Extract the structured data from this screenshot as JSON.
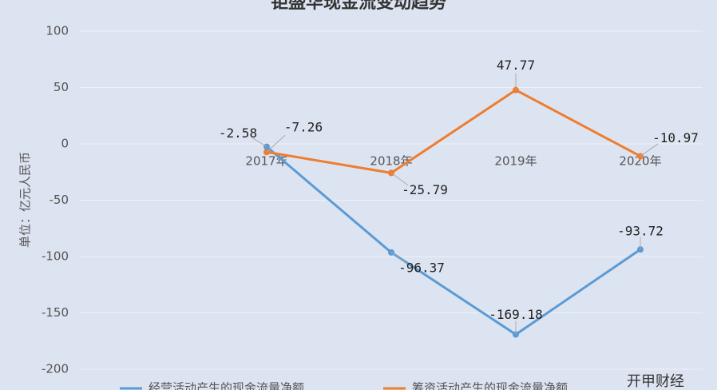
{
  "chart_data": {
    "type": "line",
    "title": "钜盛华现金流变动趋势",
    "y_label": "单位：亿元人民币",
    "categories": [
      null,
      "2017年",
      "2018年",
      "2019年",
      "2020年"
    ],
    "series": [
      {
        "name": "经营活动产生的现金流量净额",
        "color": "#5b9bd5",
        "values": [
          null,
          -2.58,
          -96.37,
          -169.18,
          -93.72
        ]
      },
      {
        "name": "筹资活动产生的现金流量净额",
        "color": "#ed7d31",
        "values": [
          null,
          -7.26,
          -25.79,
          47.77,
          -10.97
        ]
      }
    ],
    "ylim": [
      -200,
      100
    ],
    "yticks": [
      -200,
      -150,
      -100,
      -50,
      0,
      50,
      100
    ],
    "grid": true,
    "legend": "bottom",
    "watermark": "开甲财经"
  }
}
